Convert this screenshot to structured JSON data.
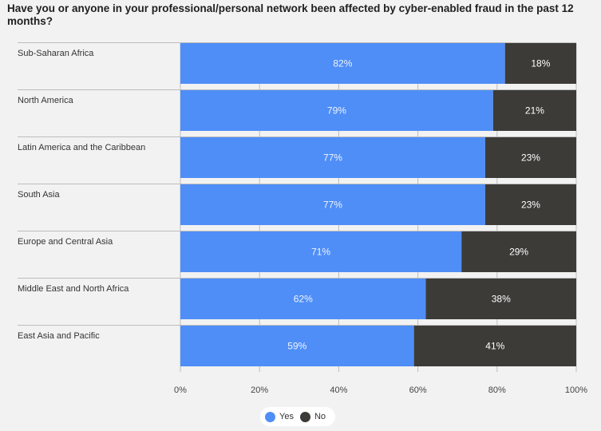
{
  "title": "Have you or anyone in your professional/personal network been affected by cyber-enabled fraud in the past 12 months?",
  "colors": {
    "yes": "#4f8ef7",
    "no": "#3d3b38",
    "background": "#f2f2f2",
    "separator": "#bdbdbd",
    "label_text": "#333333"
  },
  "legend": {
    "yes_label": "Yes",
    "no_label": "No"
  },
  "chart_data": {
    "type": "bar",
    "orientation": "horizontal",
    "stacked": true,
    "title": "Have you or anyone in your professional/personal network been affected by cyber-enabled fraud in the past 12 months?",
    "categories": [
      "Sub-Saharan Africa",
      "North America",
      "Latin America and the Caribbean",
      "South Asia",
      "Europe and Central Asia",
      "Middle East and North Africa",
      "East Asia and Pacific"
    ],
    "series": [
      {
        "name": "Yes",
        "values": [
          82,
          79,
          77,
          77,
          71,
          62,
          59
        ],
        "labels": [
          "82%",
          "79%",
          "77%",
          "77%",
          "71%",
          "62%",
          "59%"
        ]
      },
      {
        "name": "No",
        "values": [
          18,
          21,
          23,
          23,
          29,
          38,
          41
        ],
        "labels": [
          "18%",
          "21%",
          "23%",
          "23%",
          "29%",
          "38%",
          "41%"
        ]
      }
    ],
    "xlim": [
      0,
      100
    ],
    "xticks": [
      0,
      20,
      40,
      60,
      80,
      100
    ],
    "xtick_labels": [
      "0%",
      "20%",
      "40%",
      "60%",
      "80%",
      "100%"
    ],
    "grid": true,
    "legend_position": "bottom-center"
  }
}
